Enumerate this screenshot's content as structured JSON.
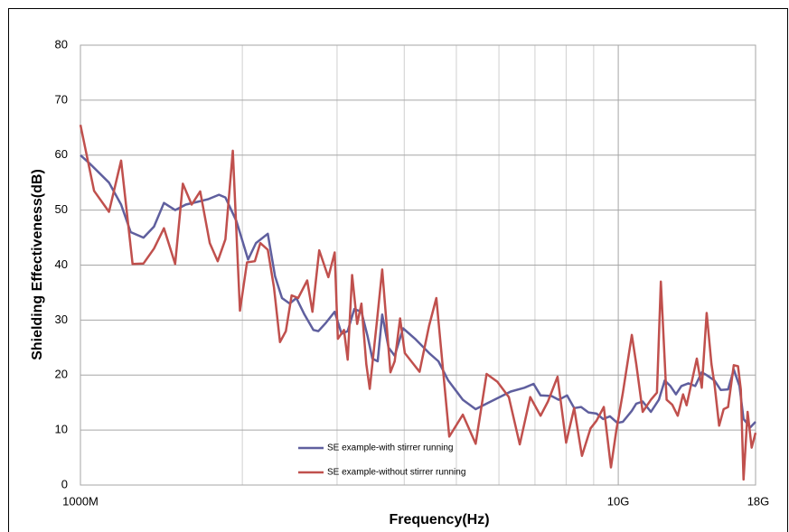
{
  "chart_data": {
    "type": "line",
    "xlabel": "Frequency(Hz)",
    "ylabel": "Shielding Effectiveness(dB)",
    "xscale": "log",
    "xlim": [
      1000000000.0,
      18000000000.0
    ],
    "xticks": [
      {
        "value": 1000000000.0,
        "label": "1000M"
      },
      {
        "value": 10000000000.0,
        "label": "10G"
      },
      {
        "value": 18000000000.0,
        "label": "18G"
      }
    ],
    "ylim": [
      0,
      80
    ],
    "yticks": [
      0,
      10,
      20,
      30,
      40,
      50,
      60,
      70,
      80
    ],
    "grid": true,
    "series": [
      {
        "name": "SE example-with stirrer running",
        "color": "#5f5f9e",
        "x": [
          1000000000.0,
          1040000000.0,
          1130000000.0,
          1190000000.0,
          1240000000.0,
          1310000000.0,
          1370000000.0,
          1430000000.0,
          1500000000.0,
          1570000000.0,
          1650000000.0,
          1730000000.0,
          1810000000.0,
          1860000000.0,
          1950000000.0,
          2050000000.0,
          2120000000.0,
          2230000000.0,
          2300000000.0,
          2370000000.0,
          2450000000.0,
          2520000000.0,
          2610000000.0,
          2710000000.0,
          2770000000.0,
          2860000000.0,
          2970000000.0,
          3060000000.0,
          3140000000.0,
          3230000000.0,
          3330000000.0,
          3420000000.0,
          3490000000.0,
          3570000000.0,
          3640000000.0,
          3740000000.0,
          3840000000.0,
          3980000000.0,
          4200000000.0,
          4450000000.0,
          4630000000.0,
          4830000000.0,
          5140000000.0,
          5430000000.0,
          5740000000.0,
          6020000000.0,
          6310000000.0,
          6690000000.0,
          6960000000.0,
          7170000000.0,
          7510000000.0,
          7750000000.0,
          8030000000.0,
          8280000000.0,
          8530000000.0,
          8800000000.0,
          9110000000.0,
          9370000000.0,
          9650000000.0,
          9960000000.0,
          10200000000.0,
          10600000000.0,
          10800000000.0,
          11100000000.0,
          11500000000.0,
          11900000000.0,
          12200000000.0,
          12500000000.0,
          12800000000.0,
          13100000000.0,
          13500000000.0,
          13900000000.0,
          14300000000.0,
          14600000000.0,
          15100000000.0,
          15500000000.0,
          16000000000.0,
          16400000000.0,
          16800000000.0,
          17100000000.0,
          17600000000.0,
          18000000000.0
        ],
        "values": [
          60,
          58.5,
          55,
          51,
          46,
          45,
          47,
          51.3,
          50,
          51,
          51.5,
          52,
          52.8,
          52.3,
          48,
          41,
          44,
          45.7,
          38,
          34,
          33,
          34,
          31,
          28.2,
          28,
          29.5,
          31.5,
          27.5,
          28,
          32,
          31.5,
          27,
          23,
          22.5,
          31,
          25,
          23.5,
          28.5,
          26.5,
          24,
          22.5,
          19,
          15.5,
          13.8,
          15,
          16,
          17,
          17.7,
          18.4,
          16.3,
          16.2,
          15.5,
          16.3,
          14,
          14.2,
          13.2,
          13,
          12,
          12.5,
          11.3,
          11.5,
          13.5,
          14.8,
          15.2,
          13.3,
          15.5,
          19,
          18,
          16.5,
          18,
          18.5,
          18,
          20.5,
          20,
          19,
          17.3,
          17.4,
          21,
          18,
          12,
          10.5,
          11.5
        ]
      },
      {
        "name": "SE example-without stirrer running",
        "color": "#c0504d",
        "x": [
          1000000000.0,
          1060000000.0,
          1130000000.0,
          1190000000.0,
          1250000000.0,
          1310000000.0,
          1370000000.0,
          1430000000.0,
          1500000000.0,
          1550000000.0,
          1610000000.0,
          1670000000.0,
          1740000000.0,
          1800000000.0,
          1860000000.0,
          1920000000.0,
          1980000000.0,
          2040000000.0,
          2110000000.0,
          2160000000.0,
          2230000000.0,
          2290000000.0,
          2350000000.0,
          2410000000.0,
          2470000000.0,
          2540000000.0,
          2640000000.0,
          2700000000.0,
          2780000000.0,
          2890000000.0,
          2970000000.0,
          3010000000.0,
          3090000000.0,
          3140000000.0,
          3200000000.0,
          3270000000.0,
          3330000000.0,
          3400000000.0,
          3450000000.0,
          3560000000.0,
          3640000000.0,
          3770000000.0,
          3840000000.0,
          3930000000.0,
          4010000000.0,
          4270000000.0,
          4450000000.0,
          4590000000.0,
          4680000000.0,
          4850000000.0,
          5140000000.0,
          5430000000.0,
          5690000000.0,
          5960000000.0,
          6260000000.0,
          6560000000.0,
          6860000000.0,
          7170000000.0,
          7400000000.0,
          7710000000.0,
          8000000000.0,
          8280000000.0,
          8560000000.0,
          8880000000.0,
          9110000000.0,
          9400000000.0,
          9690000000.0,
          9920000000.0,
          10200000000.0,
          10600000000.0,
          10800000000.0,
          11100000000.0,
          11500000000.0,
          11800000000.0,
          12000000000.0,
          12300000000.0,
          12600000000.0,
          12900000000.0,
          13200000000.0,
          13400000000.0,
          14000000000.0,
          14300000000.0,
          14600000000.0,
          14900000000.0,
          15100000000.0,
          15400000000.0,
          15700000000.0,
          16000000000.0,
          16400000000.0,
          16700000000.0,
          16900000000.0,
          17100000000.0,
          17400000000.0,
          17700000000.0,
          18000000000.0
        ],
        "values": [
          65.5,
          53.5,
          49.7,
          59,
          40.2,
          40.3,
          43,
          46.7,
          40.2,
          54.8,
          51,
          53.4,
          44,
          40.7,
          44.7,
          60.8,
          31.7,
          40.5,
          40.7,
          44,
          42.8,
          36,
          26,
          28,
          34.5,
          34,
          37.2,
          31.5,
          42.7,
          37.8,
          42.3,
          26.6,
          28.2,
          22.8,
          38.2,
          29.3,
          33,
          22,
          17.5,
          30,
          39.2,
          20.5,
          22.5,
          30.3,
          24,
          20.6,
          29,
          34,
          25,
          8.8,
          12.8,
          7.5,
          20.2,
          18.8,
          16,
          7.4,
          16,
          12.6,
          15.2,
          19.7,
          7.7,
          14,
          5.3,
          10.3,
          11.7,
          14.2,
          3.2,
          10,
          16.8,
          27.3,
          22,
          13.3,
          15.5,
          16.8,
          37,
          15.5,
          14.6,
          12.6,
          16.5,
          14.5,
          23,
          17.7,
          31.3,
          22,
          18.3,
          10.8,
          13.8,
          14.2,
          21.8,
          21.6,
          17.4,
          1,
          13.3,
          6.8,
          9.5
        ]
      }
    ]
  }
}
